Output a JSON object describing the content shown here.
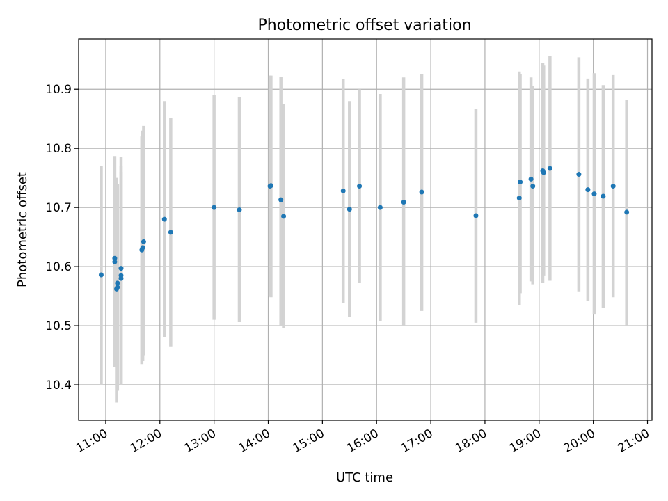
{
  "chart_data": {
    "type": "scatter",
    "title": "Photometric offset variation",
    "xlabel": "UTC time",
    "ylabel": "Photometric offset",
    "xlim": [
      "10:30",
      "21:05"
    ],
    "ylim": [
      10.34,
      10.985
    ],
    "x_ticks": [
      "11:00",
      "12:00",
      "13:00",
      "14:00",
      "15:00",
      "16:00",
      "17:00",
      "18:00",
      "19:00",
      "20:00",
      "21:00"
    ],
    "y_ticks": [
      "10.4",
      "10.5",
      "10.6",
      "10.7",
      "10.8",
      "10.9"
    ],
    "grid": true,
    "colors": {
      "point": "#1f77b4",
      "errorbar": "#d3d3d3",
      "grid": "#b0b0b0"
    },
    "points": [
      {
        "time": "10:55",
        "y": 10.586,
        "err_low": 10.4,
        "err_high": 10.77
      },
      {
        "time": "11:10",
        "y": 10.614,
        "err_low": 10.44,
        "err_high": 10.787
      },
      {
        "time": "11:10",
        "y": 10.608,
        "err_low": 10.43,
        "err_high": 10.74
      },
      {
        "time": "11:12",
        "y": 10.562,
        "err_low": 10.37,
        "err_high": 10.75
      },
      {
        "time": "11:13",
        "y": 10.565,
        "err_low": 10.39,
        "err_high": 10.74
      },
      {
        "time": "11:13",
        "y": 10.572,
        "err_low": 10.4,
        "err_high": 10.74
      },
      {
        "time": "11:17",
        "y": 10.597,
        "err_low": 10.4,
        "err_high": 10.785
      },
      {
        "time": "11:17",
        "y": 10.585,
        "err_low": 10.4,
        "err_high": 10.77
      },
      {
        "time": "11:17",
        "y": 10.58,
        "err_low": 10.4,
        "err_high": 10.76
      },
      {
        "time": "11:40",
        "y": 10.628,
        "err_low": 10.435,
        "err_high": 10.82
      },
      {
        "time": "11:41",
        "y": 10.632,
        "err_low": 10.44,
        "err_high": 10.83
      },
      {
        "time": "11:42",
        "y": 10.642,
        "err_low": 10.45,
        "err_high": 10.838
      },
      {
        "time": "12:05",
        "y": 10.68,
        "err_low": 10.48,
        "err_high": 10.88
      },
      {
        "time": "12:12",
        "y": 10.658,
        "err_low": 10.465,
        "err_high": 10.851
      },
      {
        "time": "13:00",
        "y": 10.7,
        "err_low": 10.51,
        "err_high": 10.89
      },
      {
        "time": "13:28",
        "y": 10.696,
        "err_low": 10.506,
        "err_high": 10.887
      },
      {
        "time": "14:02",
        "y": 10.736,
        "err_low": 10.55,
        "err_high": 10.923
      },
      {
        "time": "14:03",
        "y": 10.737,
        "err_low": 10.548,
        "err_high": 10.923
      },
      {
        "time": "14:14",
        "y": 10.713,
        "err_low": 10.5,
        "err_high": 10.921
      },
      {
        "time": "14:17",
        "y": 10.685,
        "err_low": 10.496,
        "err_high": 10.875
      },
      {
        "time": "15:23",
        "y": 10.728,
        "err_low": 10.538,
        "err_high": 10.917
      },
      {
        "time": "15:30",
        "y": 10.697,
        "err_low": 10.515,
        "err_high": 10.88
      },
      {
        "time": "15:41",
        "y": 10.736,
        "err_low": 10.573,
        "err_high": 10.9
      },
      {
        "time": "16:04",
        "y": 10.7,
        "err_low": 10.508,
        "err_high": 10.892
      },
      {
        "time": "16:30",
        "y": 10.709,
        "err_low": 10.5,
        "err_high": 10.92
      },
      {
        "time": "16:50",
        "y": 10.726,
        "err_low": 10.525,
        "err_high": 10.926
      },
      {
        "time": "17:50",
        "y": 10.686,
        "err_low": 10.505,
        "err_high": 10.867
      },
      {
        "time": "18:38",
        "y": 10.716,
        "err_low": 10.535,
        "err_high": 10.93
      },
      {
        "time": "18:39",
        "y": 10.743,
        "err_low": 10.555,
        "err_high": 10.925
      },
      {
        "time": "18:51",
        "y": 10.748,
        "err_low": 10.575,
        "err_high": 10.92
      },
      {
        "time": "18:53",
        "y": 10.736,
        "err_low": 10.57,
        "err_high": 10.905
      },
      {
        "time": "19:04",
        "y": 10.762,
        "err_low": 10.572,
        "err_high": 10.945
      },
      {
        "time": "19:05",
        "y": 10.759,
        "err_low": 10.585,
        "err_high": 10.94
      },
      {
        "time": "19:12",
        "y": 10.766,
        "err_low": 10.576,
        "err_high": 10.956
      },
      {
        "time": "19:44",
        "y": 10.756,
        "err_low": 10.558,
        "err_high": 10.954
      },
      {
        "time": "19:54",
        "y": 10.73,
        "err_low": 10.542,
        "err_high": 10.918
      },
      {
        "time": "20:01",
        "y": 10.723,
        "err_low": 10.52,
        "err_high": 10.927
      },
      {
        "time": "20:11",
        "y": 10.719,
        "err_low": 10.53,
        "err_high": 10.907
      },
      {
        "time": "20:22",
        "y": 10.736,
        "err_low": 10.548,
        "err_high": 10.924
      },
      {
        "time": "20:37",
        "y": 10.692,
        "err_low": 10.5,
        "err_high": 10.882
      }
    ]
  }
}
